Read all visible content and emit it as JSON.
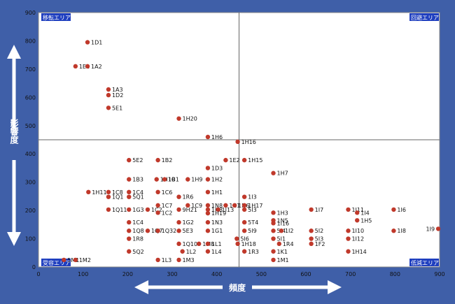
{
  "chart_data": {
    "type": "scatter",
    "xlabel": "頻度",
    "ylabel": "影響度",
    "xlim": [
      0,
      900
    ],
    "ylim": [
      0,
      900
    ],
    "xticks": [
      0,
      100,
      200,
      300,
      400,
      500,
      600,
      700,
      800,
      900
    ],
    "yticks": [
      0,
      100,
      200,
      300,
      400,
      500,
      600,
      700,
      800,
      900
    ],
    "threshold_x": 450,
    "threshold_y": 450,
    "quadrants": {
      "top_left": "移転エリア",
      "top_right": "回避エリア",
      "bottom_left": "受容エリア",
      "bottom_right": "低減エリア"
    },
    "marker_color": "#c0392b",
    "points": [
      {
        "label": "1D1",
        "x": 110,
        "y": 795
      },
      {
        "label": "1E1",
        "x": 83,
        "y": 710
      },
      {
        "label": "1A2",
        "x": 110,
        "y": 710
      },
      {
        "label": "1A3",
        "x": 157,
        "y": 628
      },
      {
        "label": "1D2",
        "x": 157,
        "y": 608
      },
      {
        "label": "5E1",
        "x": 157,
        "y": 563
      },
      {
        "label": "1H20",
        "x": 315,
        "y": 525
      },
      {
        "label": "1H6",
        "x": 380,
        "y": 460
      },
      {
        "label": "1H16",
        "x": 447,
        "y": 443
      },
      {
        "label": "5E2",
        "x": 203,
        "y": 378
      },
      {
        "label": "1B2",
        "x": 268,
        "y": 378
      },
      {
        "label": "1E2",
        "x": 420,
        "y": 378
      },
      {
        "label": "1H15",
        "x": 462,
        "y": 378
      },
      {
        "label": "1D3",
        "x": 380,
        "y": 350
      },
      {
        "label": "1H7",
        "x": 527,
        "y": 332
      },
      {
        "label": "1B3",
        "x": 203,
        "y": 310
      },
      {
        "label": "1H10",
        "x": 265,
        "y": 310
      },
      {
        "label": "1B1",
        "x": 283,
        "y": 310
      },
      {
        "label": "1H9",
        "x": 335,
        "y": 310
      },
      {
        "label": "1H2",
        "x": 380,
        "y": 310
      },
      {
        "label": "1H11",
        "x": 112,
        "y": 265
      },
      {
        "label": "1C8",
        "x": 157,
        "y": 265
      },
      {
        "label": "1C4",
        "x": 203,
        "y": 265
      },
      {
        "label": "1C6",
        "x": 268,
        "y": 265
      },
      {
        "label": "1H1",
        "x": 380,
        "y": 265
      },
      {
        "label": "1Q1",
        "x": 157,
        "y": 248
      },
      {
        "label": "5Q1",
        "x": 203,
        "y": 248
      },
      {
        "label": "1R6",
        "x": 315,
        "y": 248
      },
      {
        "label": "1I3",
        "x": 462,
        "y": 248
      },
      {
        "label": "1C7",
        "x": 268,
        "y": 218
      },
      {
        "label": "1C9",
        "x": 335,
        "y": 218
      },
      {
        "label": "1N8",
        "x": 380,
        "y": 218
      },
      {
        "label": "1C1",
        "x": 420,
        "y": 218
      },
      {
        "label": "1N6",
        "x": 440,
        "y": 218
      },
      {
        "label": "1H17",
        "x": 462,
        "y": 218
      },
      {
        "label": "1Q11",
        "x": 157,
        "y": 203
      },
      {
        "label": "1G3",
        "x": 203,
        "y": 203
      },
      {
        "label": "1C2",
        "x": 245,
        "y": 203
      },
      {
        "label": "9H21",
        "x": 315,
        "y": 203
      },
      {
        "label": "1H8",
        "x": 380,
        "y": 203
      },
      {
        "label": "1I13",
        "x": 403,
        "y": 203
      },
      {
        "label": "5I3",
        "x": 462,
        "y": 203
      },
      {
        "label": "1I7",
        "x": 612,
        "y": 203
      },
      {
        "label": "1I11",
        "x": 695,
        "y": 203
      },
      {
        "label": "1I6",
        "x": 797,
        "y": 203
      },
      {
        "label": "1C2",
        "x": 268,
        "y": 192
      },
      {
        "label": "1H3",
        "x": 527,
        "y": 192
      },
      {
        "label": "1I4",
        "x": 715,
        "y": 192
      },
      {
        "label": "1H19",
        "x": 380,
        "y": 190
      },
      {
        "label": "1N5",
        "x": 527,
        "y": 165
      },
      {
        "label": "1H5",
        "x": 715,
        "y": 165
      },
      {
        "label": "1C4",
        "x": 203,
        "y": 158
      },
      {
        "label": "1G2",
        "x": 315,
        "y": 158
      },
      {
        "label": "1N3",
        "x": 380,
        "y": 158
      },
      {
        "label": "5T4",
        "x": 462,
        "y": 158
      },
      {
        "label": "1I16",
        "x": 527,
        "y": 155
      },
      {
        "label": "1I9",
        "x": 897,
        "y": 135
      },
      {
        "label": "1Q8",
        "x": 203,
        "y": 128
      },
      {
        "label": "1Q7",
        "x": 245,
        "y": 128
      },
      {
        "label": "1Q32",
        "x": 268,
        "y": 128
      },
      {
        "label": "5E3",
        "x": 315,
        "y": 128
      },
      {
        "label": "1G1",
        "x": 380,
        "y": 128
      },
      {
        "label": "5I9",
        "x": 462,
        "y": 128
      },
      {
        "label": "5I4",
        "x": 527,
        "y": 128
      },
      {
        "label": "1I2",
        "x": 545,
        "y": 128
      },
      {
        "label": "5I2",
        "x": 612,
        "y": 128
      },
      {
        "label": "1I10",
        "x": 695,
        "y": 128
      },
      {
        "label": "1I8",
        "x": 797,
        "y": 128
      },
      {
        "label": "1R8",
        "x": 203,
        "y": 100
      },
      {
        "label": "5I6",
        "x": 445,
        "y": 100
      },
      {
        "label": "5I1",
        "x": 527,
        "y": 100
      },
      {
        "label": "5I3",
        "x": 612,
        "y": 100
      },
      {
        "label": "1I12",
        "x": 695,
        "y": 100
      },
      {
        "label": "1Q10",
        "x": 315,
        "y": 82
      },
      {
        "label": "1M8",
        "x": 360,
        "y": 82
      },
      {
        "label": "1L1",
        "x": 380,
        "y": 82
      },
      {
        "label": "1H18",
        "x": 447,
        "y": 82
      },
      {
        "label": "1R4",
        "x": 540,
        "y": 82
      },
      {
        "label": "1F2",
        "x": 612,
        "y": 82
      },
      {
        "label": "5Q2",
        "x": 203,
        "y": 55
      },
      {
        "label": "1L2",
        "x": 323,
        "y": 55
      },
      {
        "label": "1L4",
        "x": 380,
        "y": 55
      },
      {
        "label": "1R3",
        "x": 462,
        "y": 55
      },
      {
        "label": "1K1",
        "x": 527,
        "y": 55
      },
      {
        "label": "1H14",
        "x": 695,
        "y": 55
      },
      {
        "label": "5M1",
        "x": 57,
        "y": 25
      },
      {
        "label": "1M2",
        "x": 83,
        "y": 25
      },
      {
        "label": "1L3",
        "x": 268,
        "y": 25
      },
      {
        "label": "1M3",
        "x": 315,
        "y": 25
      },
      {
        "label": "1M1",
        "x": 527,
        "y": 25
      }
    ]
  }
}
